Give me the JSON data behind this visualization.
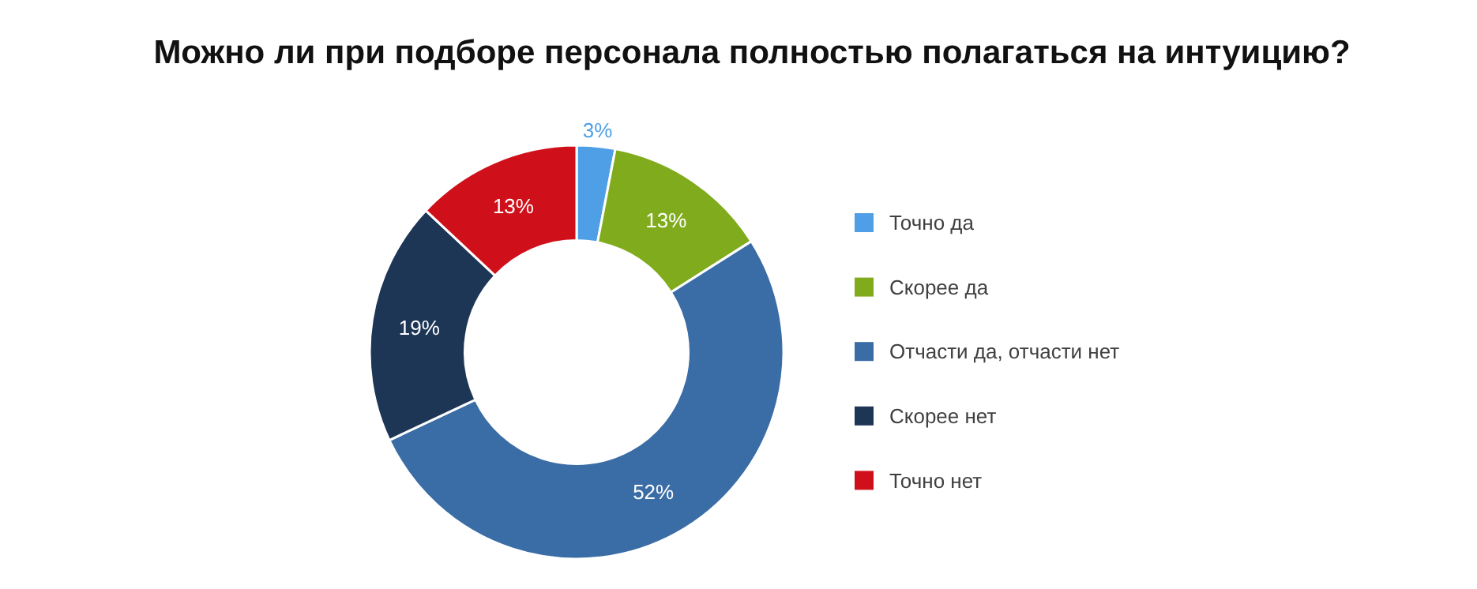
{
  "chart_data": {
    "type": "donut",
    "title": "Можно ли при подборе персонала полностью полагаться на интуицию?",
    "categories": [
      "Точно да",
      "Скорее да",
      "Отчасти да, отчасти нет",
      "Скорее нет",
      "Точно нет"
    ],
    "values": [
      3,
      13,
      52,
      19,
      13
    ],
    "value_labels": [
      "3%",
      "13%",
      "52%",
      "19%",
      "13%"
    ],
    "colors": [
      "#4e9fe5",
      "#80ab1c",
      "#3a6ca6",
      "#1d3656",
      "#cf101a"
    ],
    "legend": "right"
  }
}
